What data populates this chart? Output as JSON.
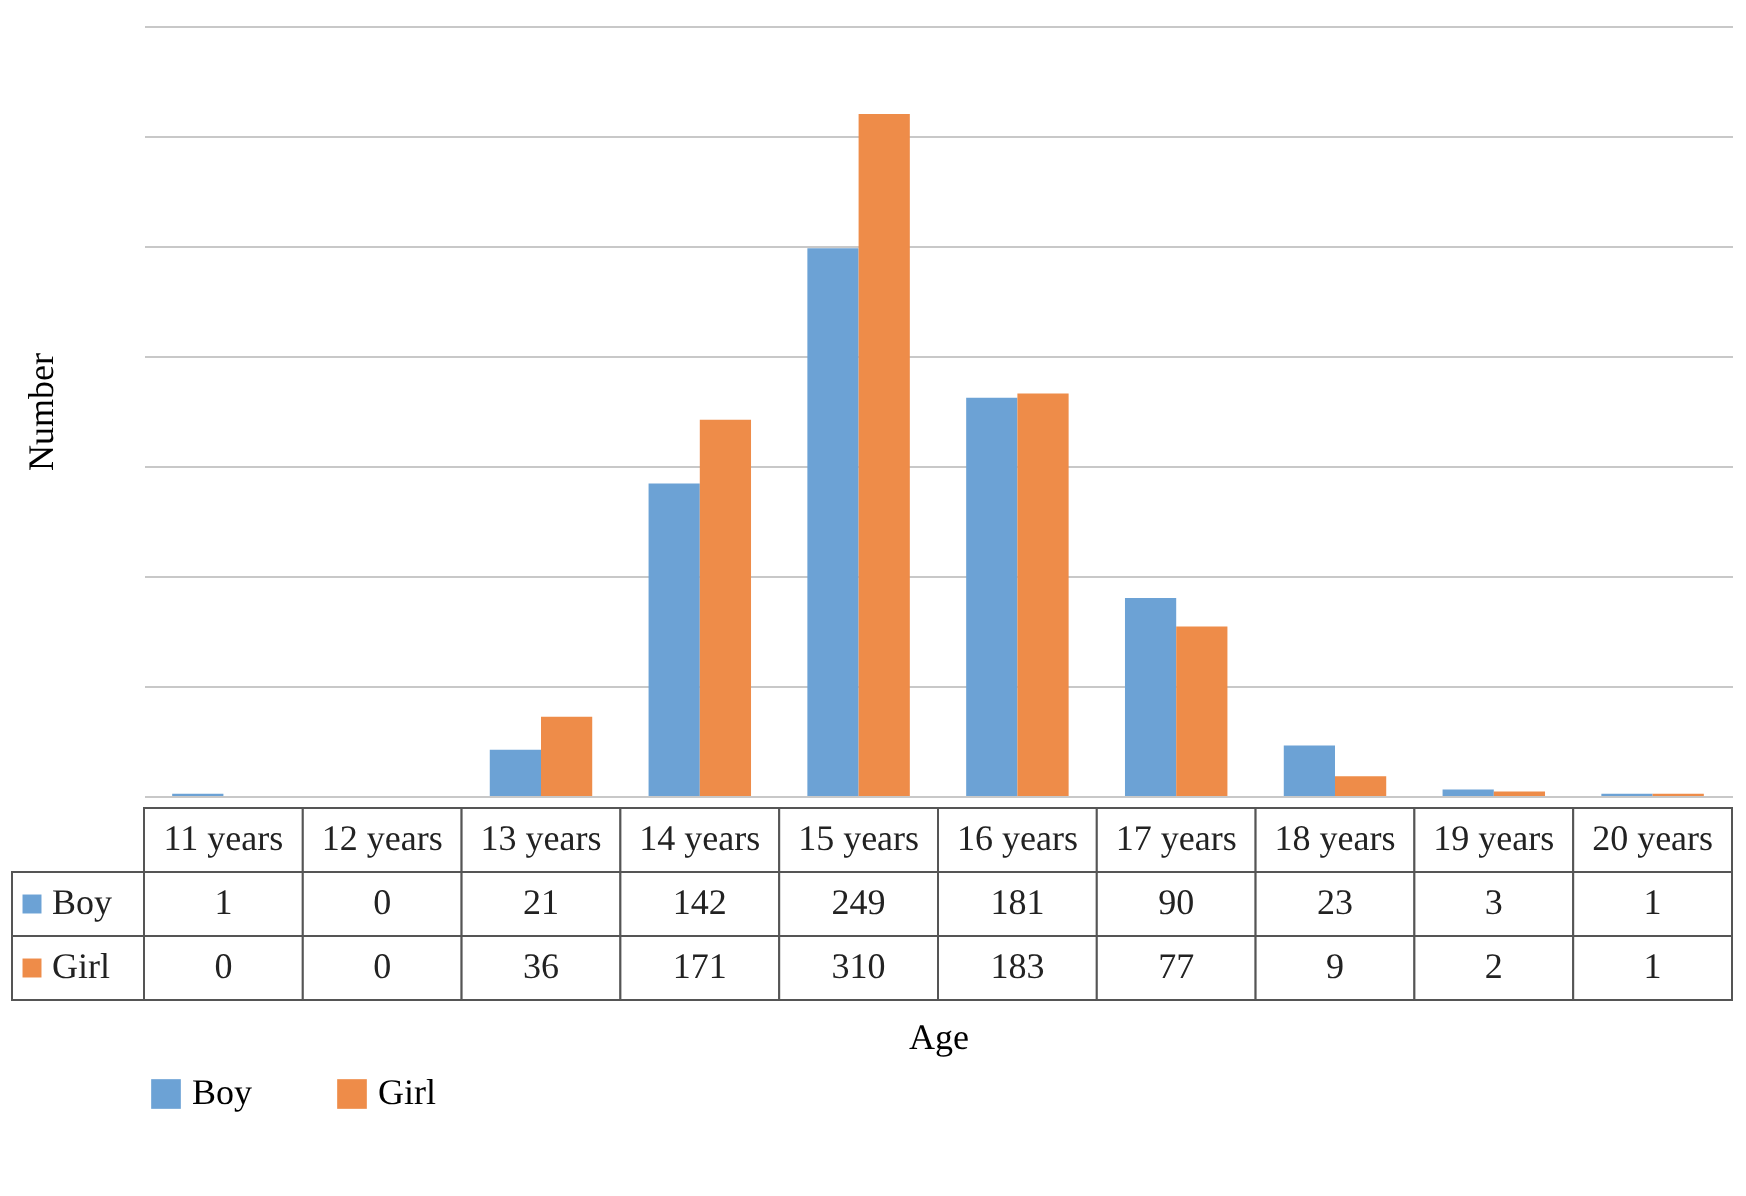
{
  "chart_data": {
    "type": "bar",
    "xlabel": "Age",
    "ylabel": "Number",
    "categories": [
      "11 years",
      "12 years",
      "13 years",
      "14 years",
      "15 years",
      "16 years",
      "17 years",
      "18 years",
      "19 years",
      "20 years"
    ],
    "series": [
      {
        "name": "Boy",
        "color": "#6ca2d5",
        "values": [
          1,
          0,
          21,
          142,
          249,
          181,
          90,
          23,
          3,
          1
        ]
      },
      {
        "name": "Girl",
        "color": "#ee8c49",
        "values": [
          0,
          0,
          36,
          171,
          310,
          183,
          77,
          9,
          2,
          1
        ]
      }
    ],
    "ylim": [
      0,
      350
    ],
    "yticks": [
      {
        "value": 0,
        "label": null
      },
      {
        "value": 50,
        "label": null
      },
      {
        "value": 100,
        "label": null
      },
      {
        "value": 150,
        "label": null
      },
      {
        "value": 200,
        "label": null
      },
      {
        "value": 250,
        "label": null
      },
      {
        "value": 300,
        "label": null
      },
      {
        "value": 350,
        "label": null
      }
    ],
    "grid": "y",
    "legend": "bottom",
    "data_labels": true
  }
}
